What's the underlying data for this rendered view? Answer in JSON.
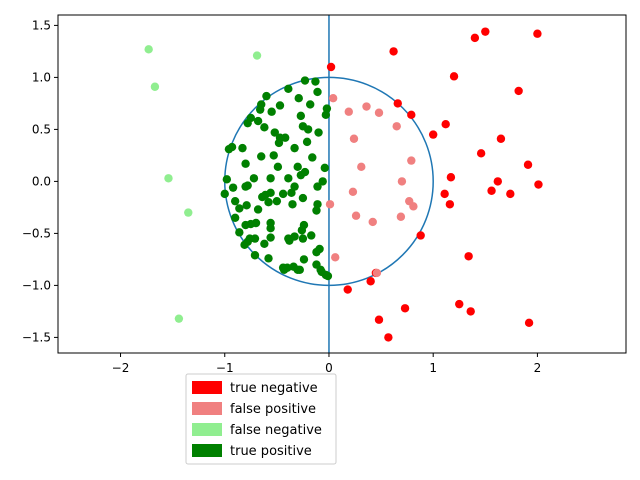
{
  "chart_data": {
    "type": "scatter",
    "title": "",
    "xlabel": "",
    "ylabel": "",
    "xlim": [
      -2.6,
      2.85
    ],
    "ylim": [
      -1.65,
      1.6
    ],
    "grid": false,
    "x_ticks": [
      -2,
      -1,
      0,
      1,
      2
    ],
    "y_ticks": [
      -1.5,
      -1.0,
      -0.5,
      0.0,
      0.5,
      1.0,
      1.5
    ],
    "reference_lines": {
      "vertical_x": 0,
      "unit_circle": {
        "center": [
          0,
          0
        ],
        "radius": 1,
        "color": "#1f77b4"
      }
    },
    "legend_position": "bottom-left, below axes",
    "series": [
      {
        "name": "true negative",
        "color": "#ff0000",
        "points": [
          [
            0.02,
            1.1
          ],
          [
            0.62,
            1.25
          ],
          [
            1.4,
            1.38
          ],
          [
            1.5,
            1.44
          ],
          [
            2.0,
            1.42
          ],
          [
            1.2,
            1.01
          ],
          [
            1.82,
            0.87
          ],
          [
            0.66,
            0.75
          ],
          [
            0.79,
            0.64
          ],
          [
            1.12,
            0.55
          ],
          [
            1.0,
            0.45
          ],
          [
            1.65,
            0.41
          ],
          [
            1.46,
            0.27
          ],
          [
            1.91,
            0.16
          ],
          [
            1.17,
            0.04
          ],
          [
            1.62,
            0.0
          ],
          [
            2.01,
            -0.03
          ],
          [
            1.56,
            -0.09
          ],
          [
            1.74,
            -0.12
          ],
          [
            1.11,
            -0.12
          ],
          [
            1.16,
            -0.22
          ],
          [
            0.88,
            -0.52
          ],
          [
            1.34,
            -0.72
          ],
          [
            0.45,
            -0.88
          ],
          [
            0.4,
            -0.96
          ],
          [
            0.18,
            -1.04
          ],
          [
            1.25,
            -1.18
          ],
          [
            0.73,
            -1.22
          ],
          [
            1.36,
            -1.25
          ],
          [
            0.48,
            -1.33
          ],
          [
            1.92,
            -1.36
          ],
          [
            0.57,
            -1.5
          ]
        ]
      },
      {
        "name": "false positive",
        "color": "#f08080",
        "points": [
          [
            0.04,
            0.8
          ],
          [
            0.19,
            0.67
          ],
          [
            0.36,
            0.72
          ],
          [
            0.48,
            0.66
          ],
          [
            0.65,
            0.53
          ],
          [
            0.24,
            0.41
          ],
          [
            0.79,
            0.2
          ],
          [
            0.31,
            0.14
          ],
          [
            0.7,
            0.0
          ],
          [
            0.23,
            -0.1
          ],
          [
            0.77,
            -0.19
          ],
          [
            0.81,
            -0.24
          ],
          [
            0.01,
            -0.22
          ],
          [
            0.26,
            -0.33
          ],
          [
            0.42,
            -0.39
          ],
          [
            0.69,
            -0.34
          ],
          [
            0.06,
            -0.73
          ],
          [
            0.46,
            -0.88
          ]
        ]
      },
      {
        "name": "false negative",
        "color": "#90ee90",
        "points": [
          [
            -1.73,
            1.27
          ],
          [
            -0.69,
            1.21
          ],
          [
            -1.67,
            0.91
          ],
          [
            -1.54,
            0.03
          ],
          [
            -1.35,
            -0.3
          ],
          [
            -1.44,
            -1.32
          ]
        ]
      },
      {
        "name": "true positive",
        "color": "#008000",
        "points": [
          [
            -0.23,
            0.97
          ],
          [
            -0.13,
            0.96
          ],
          [
            -0.39,
            0.89
          ],
          [
            -0.11,
            0.86
          ],
          [
            -0.6,
            0.82
          ],
          [
            -0.29,
            0.8
          ],
          [
            -0.65,
            0.74
          ],
          [
            -0.47,
            0.73
          ],
          [
            -0.18,
            0.74
          ],
          [
            -0.02,
            0.7
          ],
          [
            -0.55,
            0.67
          ],
          [
            -0.66,
            0.69
          ],
          [
            -0.27,
            0.63
          ],
          [
            -0.03,
            0.64
          ],
          [
            -0.68,
            0.58
          ],
          [
            -0.78,
            0.56
          ],
          [
            -0.75,
            0.61
          ],
          [
            -0.25,
            0.53
          ],
          [
            -0.62,
            0.52
          ],
          [
            -0.2,
            0.5
          ],
          [
            -0.42,
            0.42
          ],
          [
            -0.52,
            0.47
          ],
          [
            -0.1,
            0.47
          ],
          [
            -0.47,
            0.42
          ],
          [
            -0.48,
            0.37
          ],
          [
            -0.21,
            0.38
          ],
          [
            -0.93,
            0.33
          ],
          [
            -0.96,
            0.31
          ],
          [
            -0.83,
            0.32
          ],
          [
            -0.33,
            0.32
          ],
          [
            -0.65,
            0.24
          ],
          [
            -0.53,
            0.25
          ],
          [
            -0.16,
            0.23
          ],
          [
            -0.8,
            0.17
          ],
          [
            -0.3,
            0.14
          ],
          [
            -0.49,
            0.14
          ],
          [
            -0.04,
            0.13
          ],
          [
            -0.72,
            0.03
          ],
          [
            -0.98,
            0.02
          ],
          [
            -0.23,
            0.09
          ],
          [
            -0.39,
            0.03
          ],
          [
            -0.56,
            0.03
          ],
          [
            -0.27,
            0.06
          ],
          [
            -0.06,
            0.0
          ],
          [
            -0.78,
            -0.04
          ],
          [
            -0.92,
            -0.06
          ],
          [
            -0.8,
            -0.05
          ],
          [
            -0.33,
            -0.05
          ],
          [
            -0.11,
            -0.05
          ],
          [
            -0.36,
            -0.11
          ],
          [
            -0.61,
            -0.13
          ],
          [
            -0.56,
            -0.11
          ],
          [
            -0.44,
            -0.12
          ],
          [
            -1.0,
            -0.12
          ],
          [
            -0.64,
            -0.15
          ],
          [
            -0.25,
            -0.16
          ],
          [
            -0.5,
            -0.19
          ],
          [
            -0.9,
            -0.19
          ],
          [
            -0.58,
            -0.2
          ],
          [
            -0.79,
            -0.23
          ],
          [
            -0.35,
            -0.22
          ],
          [
            -0.11,
            -0.22
          ],
          [
            -0.86,
            -0.26
          ],
          [
            -0.68,
            -0.27
          ],
          [
            -0.12,
            -0.28
          ],
          [
            -0.9,
            -0.35
          ],
          [
            -0.7,
            -0.4
          ],
          [
            -0.8,
            -0.42
          ],
          [
            -0.75,
            -0.41
          ],
          [
            -0.56,
            -0.4
          ],
          [
            -0.24,
            -0.42
          ],
          [
            -0.56,
            -0.45
          ],
          [
            -0.86,
            -0.49
          ],
          [
            -0.26,
            -0.47
          ],
          [
            -0.39,
            -0.55
          ],
          [
            -0.17,
            -0.52
          ],
          [
            -0.33,
            -0.53
          ],
          [
            -0.25,
            -0.55
          ],
          [
            -0.56,
            -0.54
          ],
          [
            -0.78,
            -0.58
          ],
          [
            -0.76,
            -0.55
          ],
          [
            -0.71,
            -0.55
          ],
          [
            -0.81,
            -0.61
          ],
          [
            -0.62,
            -0.6
          ],
          [
            -0.38,
            -0.57
          ],
          [
            -0.12,
            -0.68
          ],
          [
            -0.09,
            -0.65
          ],
          [
            -0.71,
            -0.71
          ],
          [
            -0.58,
            -0.74
          ],
          [
            -0.34,
            -0.82
          ],
          [
            -0.44,
            -0.83
          ],
          [
            -0.4,
            -0.83
          ],
          [
            -0.3,
            -0.85
          ],
          [
            -0.24,
            -0.75
          ],
          [
            -0.12,
            -0.8
          ],
          [
            -0.28,
            -0.85
          ],
          [
            -0.07,
            -0.87
          ],
          [
            -0.43,
            -0.85
          ],
          [
            -0.03,
            -0.9
          ],
          [
            -0.08,
            -0.85
          ],
          [
            -0.01,
            -0.91
          ]
        ]
      }
    ]
  }
}
